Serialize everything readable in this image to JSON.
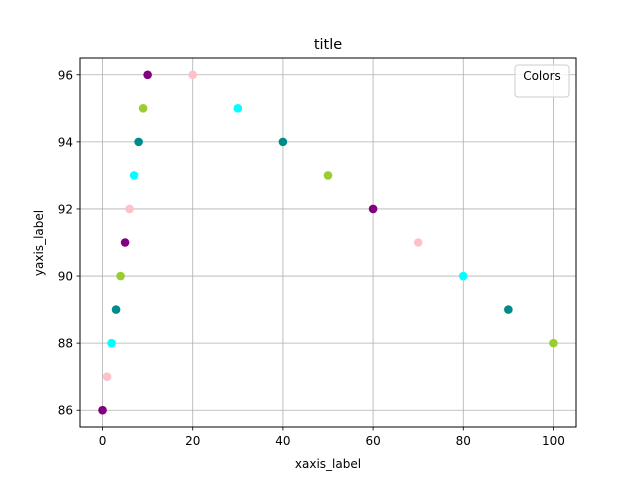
{
  "chart_data": {
    "type": "scatter",
    "title": "title",
    "xlabel": "xaxis_label",
    "ylabel": "yaxis_label",
    "xlim": [
      -5,
      105
    ],
    "ylim": [
      85.5,
      96.5
    ],
    "xticks": [
      0,
      20,
      40,
      60,
      80,
      100
    ],
    "yticks": [
      86,
      88,
      90,
      92,
      94,
      96
    ],
    "grid": true,
    "legend": {
      "title": "Colors",
      "placement": "top-right"
    },
    "points": [
      {
        "x": 0,
        "y": 86,
        "color": "#800080"
      },
      {
        "x": 1,
        "y": 87,
        "color": "#ffc0cb"
      },
      {
        "x": 2,
        "y": 88,
        "color": "#00ffff"
      },
      {
        "x": 3,
        "y": 89,
        "color": "#008b8b"
      },
      {
        "x": 4,
        "y": 90,
        "color": "#9acd32"
      },
      {
        "x": 5,
        "y": 91,
        "color": "#800080"
      },
      {
        "x": 6,
        "y": 92,
        "color": "#ffc0cb"
      },
      {
        "x": 7,
        "y": 93,
        "color": "#00ffff"
      },
      {
        "x": 8,
        "y": 94,
        "color": "#008b8b"
      },
      {
        "x": 9,
        "y": 95,
        "color": "#9acd32"
      },
      {
        "x": 10,
        "y": 96,
        "color": "#800080"
      },
      {
        "x": 20,
        "y": 96,
        "color": "#ffc0cb"
      },
      {
        "x": 30,
        "y": 95,
        "color": "#00ffff"
      },
      {
        "x": 40,
        "y": 94,
        "color": "#008b8b"
      },
      {
        "x": 50,
        "y": 93,
        "color": "#9acd32"
      },
      {
        "x": 60,
        "y": 92,
        "color": "#800080"
      },
      {
        "x": 70,
        "y": 91,
        "color": "#ffc0cb"
      },
      {
        "x": 80,
        "y": 90,
        "color": "#00ffff"
      },
      {
        "x": 90,
        "y": 89,
        "color": "#008b8b"
      },
      {
        "x": 100,
        "y": 88,
        "color": "#9acd32"
      }
    ]
  }
}
